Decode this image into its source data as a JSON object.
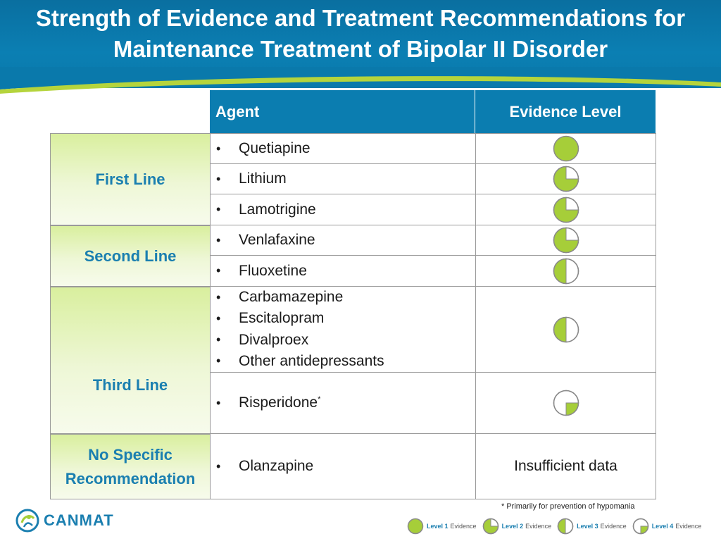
{
  "title_line1": "Strength of Evidence and Treatment Recommendations for",
  "title_line2": "Maintenance Treatment of Bipolar II Disorder",
  "headers": {
    "agent": "Agent",
    "evidence": "Evidence Level"
  },
  "categories": {
    "first": "First Line",
    "second": "Second Line",
    "third": "Third Line",
    "none_l1": "No Specific",
    "none_l2": "Recommendation"
  },
  "rows": [
    {
      "agents": [
        "Quetiapine"
      ],
      "evidence_level": 1
    },
    {
      "agents": [
        "Lithium"
      ],
      "evidence_level": 2
    },
    {
      "agents": [
        "Lamotrigine"
      ],
      "evidence_level": 2
    },
    {
      "agents": [
        "Venlafaxine"
      ],
      "evidence_level": 2
    },
    {
      "agents": [
        "Fluoxetine"
      ],
      "evidence_level": 3
    },
    {
      "agents": [
        "Carbamazepine",
        "Escitalopram",
        "Divalproex",
        "Other antidepressants"
      ],
      "evidence_level": 3
    },
    {
      "agents": [
        "Risperidone"
      ],
      "agent_suffix": "*",
      "evidence_level": 4
    },
    {
      "agents": [
        "Olanzapine"
      ],
      "evidence_text": "Insufficient data"
    }
  ],
  "bullet": "•",
  "footnote": "* Primarily for prevention of hypomania",
  "logo_text": "CANMAT",
  "legend": [
    {
      "level_label": "Level 1",
      "suffix": "Evidence",
      "level": 1
    },
    {
      "level_label": "Level 2",
      "suffix": "Evidence",
      "level": 2
    },
    {
      "level_label": "Level 3",
      "suffix": "Evidence",
      "level": 3
    },
    {
      "level_label": "Level 4",
      "suffix": "Evidence",
      "level": 4
    }
  ],
  "colors": {
    "brand_blue": "#0b7db0",
    "evidence_green": "#a6ce39",
    "category_text": "#1a7fb0"
  }
}
